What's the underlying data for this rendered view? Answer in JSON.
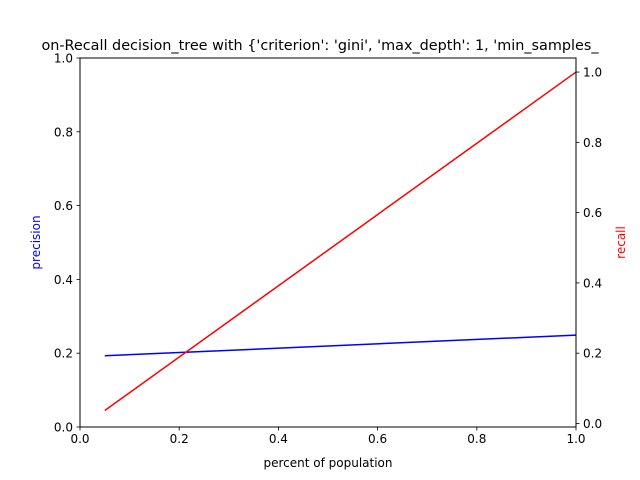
{
  "chart_data": {
    "type": "line",
    "title": "on-Recall decision_tree with {'criterion': 'gini', 'max_depth': 1, 'min_samples_",
    "xlabel": "percent of population",
    "ylabel_left": "precision",
    "ylabel_right": "recall",
    "xlim": [
      0.0,
      1.0
    ],
    "ylim_left": [
      0.0,
      1.0
    ],
    "ylim_right": [
      -0.01,
      1.04
    ],
    "x_ticks": [
      0.0,
      0.2,
      0.4,
      0.6,
      0.8,
      1.0
    ],
    "x_tick_labels": [
      "0.0",
      "0.2",
      "0.4",
      "0.6",
      "0.8",
      "1.0"
    ],
    "y_left_ticks": [
      0.0,
      0.2,
      0.4,
      0.6,
      0.8,
      1.0
    ],
    "y_left_tick_labels": [
      "0.0",
      "0.2",
      "0.4",
      "0.6",
      "0.8",
      "1.0"
    ],
    "y_right_ticks": [
      0.0,
      0.2,
      0.4,
      0.6,
      0.8,
      1.0
    ],
    "y_right_tick_labels": [
      "0.0",
      "0.2",
      "0.4",
      "0.6",
      "0.8",
      "1.0"
    ],
    "grid": false,
    "series": [
      {
        "axis": "left",
        "color": "#0000ff",
        "x": [
          0.05,
          1.0
        ],
        "y": [
          0.193,
          0.249
        ]
      },
      {
        "axis": "right",
        "color": "#ff0000",
        "x": [
          0.05,
          1.0
        ],
        "y": [
          0.037,
          1.0
        ]
      }
    ]
  }
}
